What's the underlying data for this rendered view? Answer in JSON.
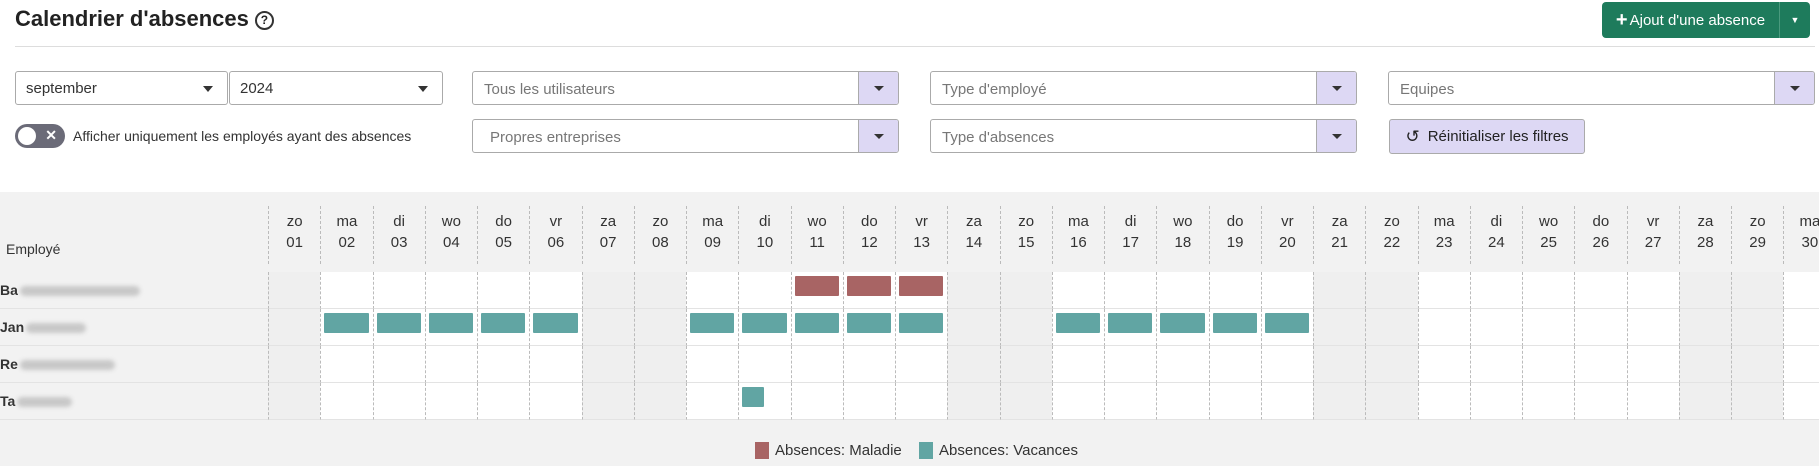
{
  "header": {
    "title": "Calendrier d'absences",
    "help_icon": "?",
    "add_label": "Ajout d'une absence",
    "add_plus": "+"
  },
  "filters": {
    "month": "september",
    "year": "2024",
    "users_placeholder": "Tous les utilisateurs",
    "employee_type_placeholder": "Type d'employé",
    "teams_placeholder": "Equipes",
    "companies_placeholder": "Propres entreprises",
    "absence_type_placeholder": "Type d'absences",
    "reset_label": "Réinitialiser les filtres",
    "toggle_label": "Afficher uniquement les employés ayant des absences",
    "toggle_on": false
  },
  "calendar": {
    "employee_header": "Employé",
    "days": [
      {
        "wd": "zo",
        "d": "01"
      },
      {
        "wd": "ma",
        "d": "02"
      },
      {
        "wd": "di",
        "d": "03"
      },
      {
        "wd": "wo",
        "d": "04"
      },
      {
        "wd": "do",
        "d": "05"
      },
      {
        "wd": "vr",
        "d": "06"
      },
      {
        "wd": "za",
        "d": "07"
      },
      {
        "wd": "zo",
        "d": "08"
      },
      {
        "wd": "ma",
        "d": "09"
      },
      {
        "wd": "di",
        "d": "10"
      },
      {
        "wd": "wo",
        "d": "11"
      },
      {
        "wd": "do",
        "d": "12"
      },
      {
        "wd": "vr",
        "d": "13"
      },
      {
        "wd": "za",
        "d": "14"
      },
      {
        "wd": "zo",
        "d": "15"
      },
      {
        "wd": "ma",
        "d": "16"
      },
      {
        "wd": "di",
        "d": "17"
      },
      {
        "wd": "wo",
        "d": "18"
      },
      {
        "wd": "do",
        "d": "19"
      },
      {
        "wd": "vr",
        "d": "20"
      },
      {
        "wd": "za",
        "d": "21"
      },
      {
        "wd": "zo",
        "d": "22"
      },
      {
        "wd": "ma",
        "d": "23"
      },
      {
        "wd": "di",
        "d": "24"
      },
      {
        "wd": "wo",
        "d": "25"
      },
      {
        "wd": "do",
        "d": "26"
      },
      {
        "wd": "vr",
        "d": "27"
      },
      {
        "wd": "za",
        "d": "28"
      },
      {
        "wd": "zo",
        "d": "29"
      },
      {
        "wd": "ma",
        "d": "30"
      }
    ],
    "employees": [
      {
        "name": "Ba",
        "absences": [
          {
            "day": 11,
            "type": "maladie"
          },
          {
            "day": 12,
            "type": "maladie"
          },
          {
            "day": 13,
            "type": "maladie"
          }
        ]
      },
      {
        "name": "Jan",
        "absences": [
          {
            "day": 2,
            "type": "vacances"
          },
          {
            "day": 3,
            "type": "vacances"
          },
          {
            "day": 4,
            "type": "vacances"
          },
          {
            "day": 5,
            "type": "vacances"
          },
          {
            "day": 6,
            "type": "vacances"
          },
          {
            "day": 9,
            "type": "vacances"
          },
          {
            "day": 10,
            "type": "vacances"
          },
          {
            "day": 11,
            "type": "vacances"
          },
          {
            "day": 12,
            "type": "vacances"
          },
          {
            "day": 13,
            "type": "vacances"
          },
          {
            "day": 16,
            "type": "vacances"
          },
          {
            "day": 17,
            "type": "vacances"
          },
          {
            "day": 18,
            "type": "vacances"
          },
          {
            "day": 19,
            "type": "vacances"
          },
          {
            "day": 20,
            "type": "vacances"
          }
        ]
      },
      {
        "name": "Re",
        "absences": []
      },
      {
        "name": "Ta",
        "absences": [
          {
            "day": 10,
            "type": "vacances",
            "partial": true
          }
        ]
      }
    ],
    "legend": [
      {
        "key": "maladie",
        "label": "Absences: Maladie",
        "color": "#a86464"
      },
      {
        "key": "vacances",
        "label": "Absences: Vacances",
        "color": "#61a5a3"
      }
    ]
  }
}
